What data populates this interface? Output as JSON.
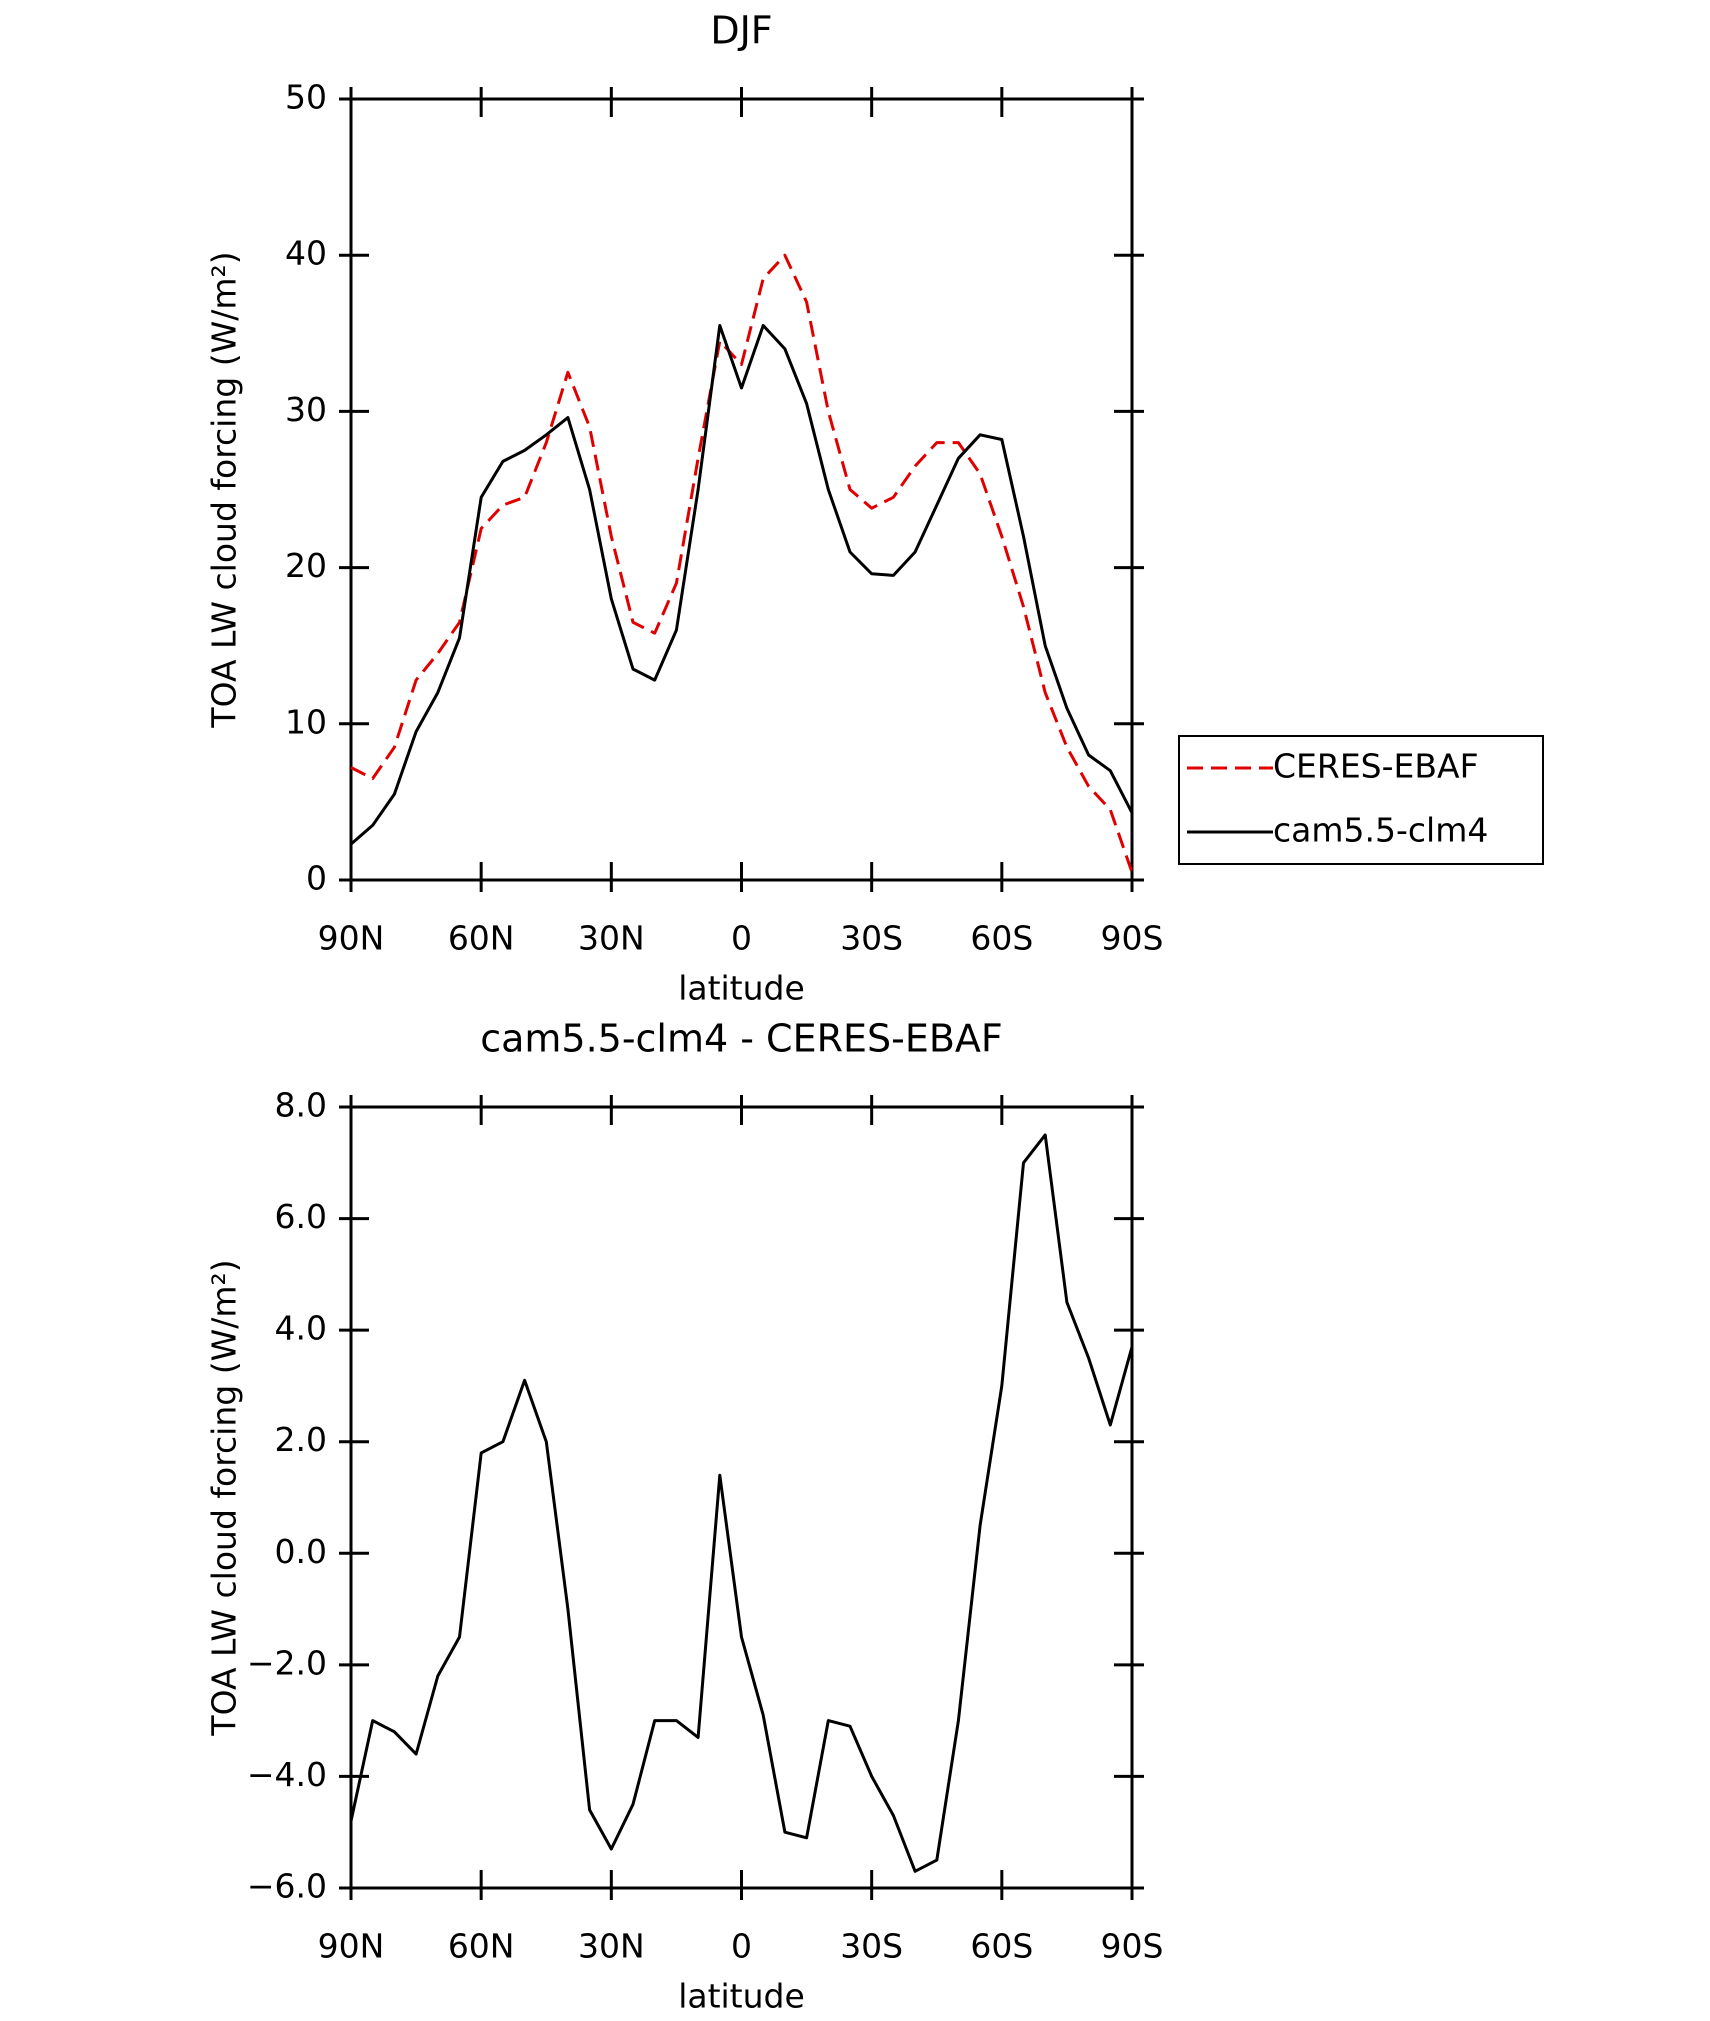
{
  "chart_data": [
    {
      "type": "line",
      "title": "DJF",
      "xlabel": "latitude",
      "ylabel": "TOA LW cloud forcing (W/m²)",
      "x": [
        90,
        85,
        80,
        75,
        70,
        65,
        60,
        55,
        50,
        45,
        40,
        35,
        30,
        25,
        20,
        15,
        10,
        5,
        0,
        -5,
        -10,
        -15,
        -20,
        -25,
        -30,
        -35,
        -40,
        -45,
        -50,
        -55,
        -60,
        -65,
        -70,
        -75,
        -80,
        -85,
        -90
      ],
      "series": [
        {
          "name": "CERES-EBAF",
          "color": "#e00000",
          "dash": true,
          "values": [
            7.2,
            6.5,
            8.5,
            12.8,
            14.5,
            16.5,
            22.5,
            24,
            24.5,
            28,
            32.5,
            29,
            22,
            16.5,
            15.8,
            19,
            27,
            34.5,
            33,
            38.5,
            40,
            37,
            30,
            25,
            23.8,
            24.5,
            26.5,
            28,
            28,
            26,
            22,
            17.5,
            12,
            8.5,
            6,
            4.5,
            0.5
          ]
        },
        {
          "name": "cam5.5-clm4",
          "color": "#000000",
          "dash": false,
          "values": [
            2.3,
            3.5,
            5.5,
            9.5,
            12,
            15.5,
            24.5,
            26.8,
            27.5,
            28.5,
            29.6,
            25,
            18,
            13.5,
            12.8,
            16,
            25,
            35.5,
            31.5,
            35.5,
            34,
            30.5,
            25,
            21,
            19.6,
            19.5,
            21,
            24,
            27,
            28.5,
            28.2,
            22,
            15,
            11,
            8,
            7,
            4.3
          ]
        }
      ],
      "xlim": [
        90,
        -90
      ],
      "xticks": [
        {
          "value": 90,
          "label": "90N"
        },
        {
          "value": 60,
          "label": "60N"
        },
        {
          "value": 30,
          "label": "30N"
        },
        0,
        {
          "value": -30,
          "label": "30S"
        },
        {
          "value": -60,
          "label": "60S"
        },
        {
          "value": -90,
          "label": "90S"
        }
      ],
      "ylim": [
        0,
        50
      ],
      "yticks": [
        0,
        10,
        20,
        30,
        40,
        50
      ],
      "legend": "outside-right"
    },
    {
      "type": "line",
      "title": "cam5.5-clm4 - CERES-EBAF",
      "xlabel": "latitude",
      "ylabel": "TOA LW cloud forcing (W/m²)",
      "x": [
        90,
        85,
        80,
        75,
        70,
        65,
        60,
        55,
        50,
        45,
        40,
        35,
        30,
        25,
        20,
        15,
        10,
        5,
        0,
        -5,
        -10,
        -15,
        -20,
        -25,
        -30,
        -35,
        -40,
        -45,
        -50,
        -55,
        -60,
        -65,
        -70,
        -75,
        -80,
        -85,
        -90
      ],
      "series": [
        {
          "color": "#000000",
          "dash": false,
          "values": [
            -4.8,
            -3.0,
            -3.2,
            -3.6,
            -2.2,
            -1.5,
            1.8,
            2.0,
            3.1,
            2.0,
            -1.0,
            -4.6,
            -5.3,
            -4.5,
            -3.0,
            -3.0,
            -3.3,
            1.4,
            -1.5,
            -2.9,
            -5.0,
            -5.1,
            -3.0,
            -3.1,
            -4.0,
            -4.7,
            -5.7,
            -5.5,
            -3.0,
            0.5,
            3.0,
            7.0,
            7.5,
            4.5,
            3.5,
            2.3,
            3.7
          ]
        }
      ],
      "xlim": [
        90,
        -90
      ],
      "xticks": [
        {
          "value": 90,
          "label": "90N"
        },
        {
          "value": 60,
          "label": "60N"
        },
        {
          "value": 30,
          "label": "30N"
        },
        0,
        {
          "value": -30,
          "label": "30S"
        },
        {
          "value": -60,
          "label": "60S"
        },
        {
          "value": -90,
          "label": "90S"
        }
      ],
      "ylim": [
        -6,
        8
      ],
      "yticks": [
        {
          "value": -6,
          "label": "−6.0"
        },
        {
          "value": -4,
          "label": "−4.0"
        },
        {
          "value": -2,
          "label": "−2.0"
        },
        {
          "value": 0,
          "label": "0.0"
        },
        {
          "value": 2,
          "label": "2.0"
        },
        {
          "value": 4,
          "label": "4.0"
        },
        {
          "value": 6,
          "label": "6.0"
        },
        {
          "value": 8,
          "label": "8.0"
        }
      ]
    }
  ]
}
